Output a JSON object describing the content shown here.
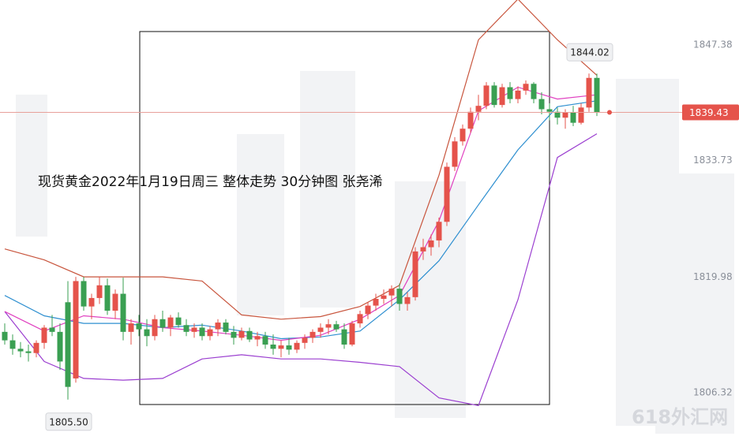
{
  "chart_data": {
    "type": "candlestick",
    "title": "现货黄金2022年1月19日周三  整体走势 30分钟图 张尧浠",
    "watermark": "618外汇网",
    "ylim": [
      1801.1,
      1852.7
    ],
    "yticks": [
      1847.38,
      1833.73,
      1819.98,
      1806.32
    ],
    "up_color": "#e5534b",
    "down_color": "#3a9f52",
    "open": [
      1813.5,
      1812.5,
      1811.5,
      1811.2,
      1811.0,
      1812.2,
      1814.0,
      1813.5,
      1817.0,
      1808.0,
      1819.5,
      1816.5,
      1817.5,
      1819.0,
      1816.0,
      1818.0,
      1813.5,
      1814.5,
      1813.8,
      1813.0,
      1815.0,
      1814.0,
      1815.2,
      1814.3,
      1813.5,
      1814.0,
      1813.0,
      1813.8,
      1814.6,
      1813.5,
      1812.8,
      1813.6,
      1812.6,
      1813.0,
      1812.0,
      1811.5,
      1811.9,
      1811.4,
      1812.2,
      1812.8,
      1813.5,
      1814.0,
      1814.4,
      1813.8,
      1812.0,
      1814.5,
      1815.6,
      1816.6,
      1817.4,
      1817.8,
      1818.6,
      1816.8,
      1817.6,
      1823.0,
      1823.5,
      1824.3,
      1826.5,
      1833.0,
      1836.0,
      1837.5,
      1839.5,
      1840.2,
      1842.6,
      1840.3,
      1842.4,
      1841.0,
      1842.0,
      1842.8,
      1841.0,
      1839.8,
      1839.5,
      1838.8,
      1839.4,
      1838.2,
      1840.0,
      1843.5
    ],
    "high": [
      1814.5,
      1813.2,
      1812.3,
      1812.0,
      1812.5,
      1814.3,
      1815.5,
      1814.5,
      1819.5,
      1820.0,
      1820.0,
      1818.0,
      1820.0,
      1819.8,
      1818.5,
      1819.9,
      1815.0,
      1815.5,
      1815.0,
      1815.5,
      1816.0,
      1815.5,
      1815.8,
      1815.0,
      1814.5,
      1814.5,
      1814.2,
      1815.0,
      1815.0,
      1814.2,
      1814.0,
      1814.0,
      1813.5,
      1813.5,
      1813.2,
      1812.5,
      1812.8,
      1812.5,
      1813.2,
      1813.8,
      1814.5,
      1815.0,
      1814.8,
      1814.5,
      1814.8,
      1816.0,
      1817.0,
      1818.0,
      1818.5,
      1819.0,
      1819.2,
      1818.2,
      1823.5,
      1824.5,
      1825.0,
      1827.0,
      1833.5,
      1836.5,
      1838.0,
      1840.0,
      1841.5,
      1843.0,
      1843.0,
      1842.8,
      1843.0,
      1842.5,
      1843.2,
      1843.0,
      1841.8,
      1840.5,
      1840.0,
      1839.8,
      1840.2,
      1840.5,
      1844.02,
      1844.0
    ],
    "low": [
      1812.0,
      1810.8,
      1810.5,
      1810.0,
      1810.5,
      1811.5,
      1813.0,
      1809.0,
      1805.5,
      1807.5,
      1816.0,
      1815.0,
      1816.8,
      1815.5,
      1815.0,
      1812.5,
      1812.0,
      1813.0,
      1811.8,
      1812.5,
      1813.5,
      1813.0,
      1814.0,
      1813.0,
      1812.8,
      1812.5,
      1812.5,
      1813.0,
      1813.2,
      1812.0,
      1812.5,
      1812.3,
      1811.8,
      1811.5,
      1810.8,
      1810.5,
      1810.8,
      1811.0,
      1811.5,
      1812.2,
      1812.8,
      1813.2,
      1813.5,
      1811.5,
      1811.8,
      1814.0,
      1815.0,
      1816.0,
      1816.8,
      1816.5,
      1816.0,
      1816.0,
      1817.2,
      1822.0,
      1822.5,
      1823.5,
      1826.0,
      1832.5,
      1835.5,
      1837.0,
      1838.5,
      1839.8,
      1840.0,
      1840.0,
      1840.5,
      1840.5,
      1841.5,
      1840.5,
      1839.2,
      1838.5,
      1838.0,
      1837.5,
      1837.8,
      1838.0,
      1839.5,
      1839.0
    ],
    "close": [
      1812.5,
      1811.5,
      1811.2,
      1811.0,
      1812.2,
      1814.0,
      1813.5,
      1810.0,
      1807.0,
      1819.5,
      1816.5,
      1817.5,
      1819.0,
      1816.0,
      1818.0,
      1813.5,
      1814.5,
      1813.8,
      1813.0,
      1815.0,
      1814.0,
      1815.2,
      1814.3,
      1813.5,
      1814.0,
      1813.0,
      1813.8,
      1814.6,
      1813.5,
      1812.8,
      1813.6,
      1812.6,
      1813.0,
      1812.0,
      1811.5,
      1811.9,
      1811.4,
      1812.2,
      1812.8,
      1813.5,
      1814.0,
      1814.4,
      1813.8,
      1812.0,
      1814.5,
      1815.6,
      1816.6,
      1817.4,
      1817.8,
      1818.6,
      1816.8,
      1817.6,
      1823.0,
      1823.5,
      1824.3,
      1826.5,
      1833.0,
      1836.0,
      1837.5,
      1839.5,
      1840.2,
      1842.6,
      1840.3,
      1842.4,
      1841.0,
      1842.0,
      1842.8,
      1841.0,
      1839.8,
      1839.5,
      1838.8,
      1839.4,
      1838.2,
      1840.0,
      1843.5,
      1839.43
    ],
    "series": [
      {
        "name": "upper",
        "color": "#c8553d",
        "x": [
          0,
          5,
          10,
          15,
          20,
          25,
          30,
          35,
          40,
          45,
          50,
          55,
          60,
          65,
          70,
          75
        ],
        "values": [
          1823.3,
          1822.0,
          1820.0,
          1820.0,
          1820.0,
          1819.5,
          1815.5,
          1815.0,
          1815.3,
          1816.5,
          1819.0,
          1832.0,
          1848.0,
          1852.8,
          1848.0,
          1843.8
        ]
      },
      {
        "name": "middle",
        "color": "#2e8fd0",
        "x": [
          0,
          5,
          10,
          15,
          20,
          25,
          30,
          35,
          40,
          45,
          50,
          55,
          60,
          65,
          70,
          75
        ],
        "values": [
          1817.8,
          1815.4,
          1814.5,
          1814.5,
          1814.0,
          1814.3,
          1813.6,
          1812.7,
          1812.9,
          1813.6,
          1817.3,
          1821.9,
          1828.5,
          1835.0,
          1840.1,
          1840.8
        ]
      },
      {
        "name": "lower",
        "color": "#9b3fd0",
        "x": [
          0,
          5,
          10,
          15,
          20,
          25,
          30,
          35,
          40,
          45,
          50,
          55,
          60,
          65,
          70,
          75
        ],
        "values": [
          1815.9,
          1810.0,
          1808.0,
          1807.8,
          1808.0,
          1810.3,
          1810.8,
          1810.3,
          1810.3,
          1809.9,
          1809.4,
          1805.7,
          1804.8,
          1817.3,
          1834.1,
          1836.9
        ]
      },
      {
        "name": "ma",
        "color": "#e040c0",
        "x": [
          0,
          5,
          10,
          15,
          20,
          25,
          30,
          35,
          40,
          45,
          50,
          55,
          60,
          65,
          70,
          75
        ],
        "values": [
          1815.9,
          1813.6,
          1815.4,
          1815.0,
          1814.0,
          1813.6,
          1813.1,
          1812.5,
          1813.1,
          1815.0,
          1817.8,
          1826.6,
          1839.6,
          1842.4,
          1841.0,
          1841.5
        ]
      }
    ],
    "annotations": [
      1844.02,
      {
        "value": 1805.5,
        "label": "1805.50"
      }
    ],
    "last_price": 1839.43
  }
}
